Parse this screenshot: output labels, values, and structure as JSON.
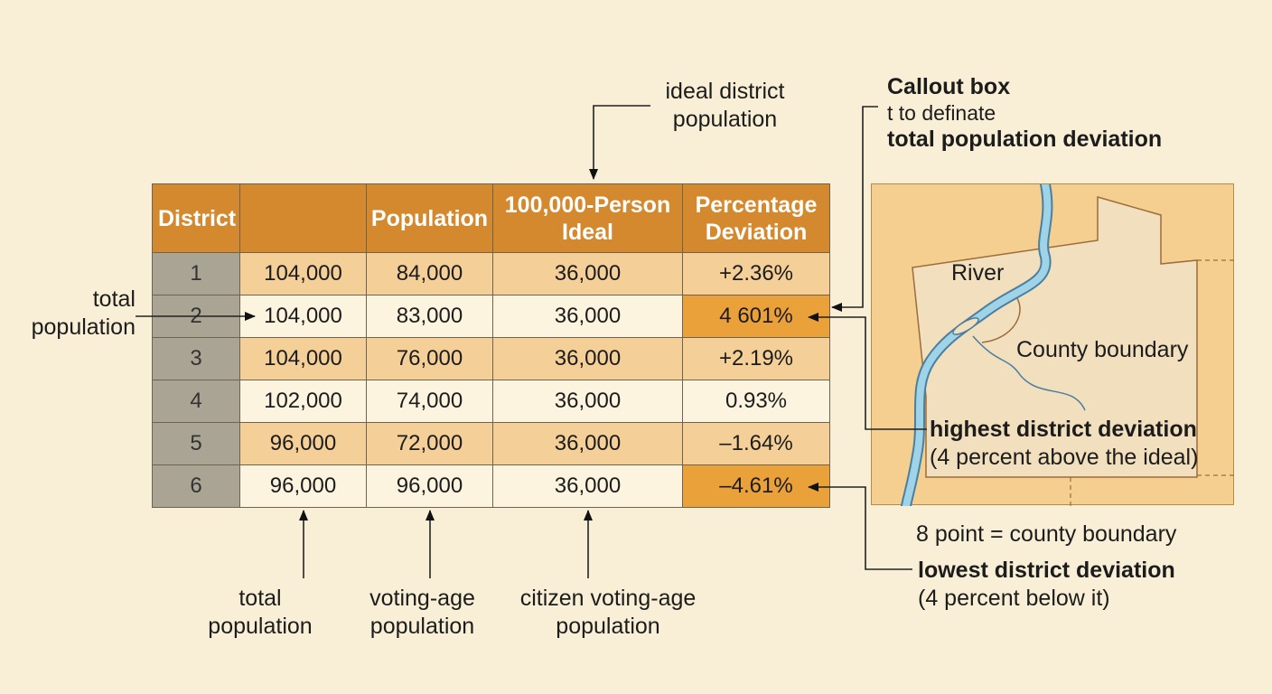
{
  "table": {
    "headers": [
      "District",
      "",
      "Population",
      "100,000-Person Ideal",
      "Percentage Deviation"
    ],
    "rows": [
      {
        "district": "1",
        "total": "104,000",
        "vap": "84,000",
        "cvap": "36,000",
        "dev": "+2.36%"
      },
      {
        "district": "2",
        "total": "104,000",
        "vap": "83,000",
        "cvap": "36,000",
        "dev": "4 601%"
      },
      {
        "district": "3",
        "total": "104,000",
        "vap": "76,000",
        "cvap": "36,000",
        "dev": "+2.19%"
      },
      {
        "district": "4",
        "total": "102,000",
        "vap": "74,000",
        "cvap": "36,000",
        "dev": "0.93%"
      },
      {
        "district": "5",
        "total": "96,000",
        "vap": "72,000",
        "cvap": "36,000",
        "dev": "–1.64%"
      },
      {
        "district": "6",
        "total": "96,000",
        "vap": "96,000",
        "cvap": "36,000",
        "dev": "–4.61%"
      }
    ],
    "highlighted_rows": [
      2,
      6
    ]
  },
  "annotations": {
    "ideal_district_population": [
      "ideal district",
      "population"
    ],
    "total_population_left": [
      "total",
      "population"
    ],
    "callout_title": "Callout box",
    "callout_line2": "t to definate",
    "callout_line3": "total population deviation",
    "highest_title": "highest district deviation",
    "highest_sub": "(4 percent above the ideal)",
    "lowest_title": "lowest district deviation",
    "lowest_sub": "(4 percent below it)",
    "legend": "8 point = county boundary",
    "bottom_labels": [
      [
        "total",
        "population"
      ],
      [
        "voting-age",
        "population"
      ],
      [
        "citizen voting-age",
        "population"
      ]
    ]
  },
  "map": {
    "river_label": "River",
    "county_label": "County boundary",
    "colors": {
      "outer": "#f5cf8f",
      "county": "#f2dfbd",
      "river": "#8fc8e0"
    }
  },
  "colors": {
    "background": "#f9efd6",
    "header": "#d4892e",
    "row_odd": "#f4cf98",
    "row_even": "#fdf4e0",
    "district_cell": "#a9a493",
    "highlight": "#eba13a"
  }
}
